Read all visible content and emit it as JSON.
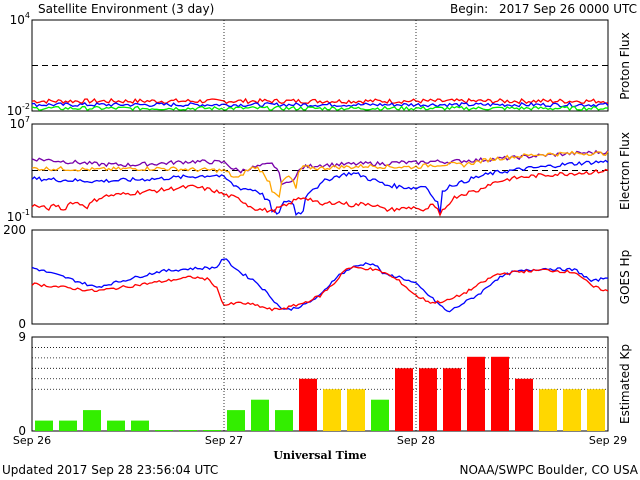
{
  "header": {
    "title": "Satellite Environment (3 day)",
    "begin_label": "Begin:",
    "begin_value": "2017 Sep 26 0000 UTC"
  },
  "footer": {
    "updated": "Updated 2017 Sep 28 23:56:04 UTC",
    "credit": "NOAA/SWPC Boulder, CO USA"
  },
  "chart_data": [
    {
      "type": "line",
      "panel": "proton",
      "ylabel": "Proton Flux",
      "yscale": "log",
      "ylim": [
        0.01,
        10000
      ],
      "ytick_labels": [
        {
          "base": "10",
          "exp": "4",
          "value": 10000
        },
        {
          "base": "10",
          "exp": "-2",
          "value": 0.01
        }
      ],
      "threshold": 10,
      "x_range_hours": [
        0,
        72
      ],
      "series": [
        {
          "color": "#ff0000",
          "level": 0.045,
          "noise": 0.3
        },
        {
          "color": "#0000ff",
          "level": 0.026,
          "noise": 0.25
        },
        {
          "color": "#00ee00",
          "level": 0.015,
          "noise": 0.25
        }
      ]
    },
    {
      "type": "line",
      "panel": "electron",
      "ylabel": "Electron Flux",
      "yscale": "log",
      "ylim": [
        0.1,
        10000000
      ],
      "ytick_labels": [
        {
          "base": "10",
          "exp": "7",
          "value": 10000000
        },
        {
          "base": "10",
          "exp": "-1",
          "value": 0.1
        }
      ],
      "threshold": 1000,
      "x_range_hours": [
        0,
        72
      ],
      "series": [
        {
          "color": "#7700aa",
          "points": [
            [
              0,
              10000
            ],
            [
              4,
              6000
            ],
            [
              8,
              3500
            ],
            [
              12,
              3000
            ],
            [
              16,
              4000
            ],
            [
              20,
              6000
            ],
            [
              24,
              5000
            ],
            [
              25,
              1500
            ],
            [
              26,
              800
            ],
            [
              28,
              2000
            ],
            [
              30,
              3500
            ],
            [
              31,
              100
            ],
            [
              32,
              60
            ],
            [
              33,
              300
            ],
            [
              34,
              2000
            ],
            [
              36,
              3000
            ],
            [
              38,
              3200
            ],
            [
              40,
              3500
            ],
            [
              42,
              4000
            ],
            [
              44,
              3800
            ],
            [
              46,
              5000
            ],
            [
              48,
              4500
            ],
            [
              50,
              6000
            ],
            [
              52,
              5500
            ],
            [
              54,
              7000
            ],
            [
              56,
              8000
            ],
            [
              60,
              12000
            ],
            [
              64,
              20000
            ],
            [
              68,
              30000
            ],
            [
              72,
              40000
            ]
          ]
        },
        {
          "color": "#ffa500",
          "points": [
            [
              0,
              1500
            ],
            [
              4,
              1400
            ],
            [
              8,
              1200
            ],
            [
              12,
              1400
            ],
            [
              16,
              1500
            ],
            [
              20,
              1200
            ],
            [
              24,
              1000
            ],
            [
              25,
              300
            ],
            [
              26,
              200
            ],
            [
              28,
              2000
            ],
            [
              29,
              300
            ],
            [
              30,
              20
            ],
            [
              31,
              5
            ],
            [
              32,
              300
            ],
            [
              33,
              20
            ],
            [
              34,
              2000
            ],
            [
              36,
              1500
            ],
            [
              38,
              2000
            ],
            [
              40,
              2000
            ],
            [
              42,
              2500
            ],
            [
              44,
              2200
            ],
            [
              46,
              2000
            ],
            [
              48,
              2000
            ],
            [
              50,
              3000
            ],
            [
              52,
              3500
            ],
            [
              54,
              3000
            ],
            [
              56,
              6000
            ],
            [
              60,
              15000
            ],
            [
              64,
              25000
            ],
            [
              68,
              30000
            ],
            [
              72,
              30000
            ]
          ]
        },
        {
          "color": "#0000ff",
          "points": [
            [
              0,
              200
            ],
            [
              4,
              150
            ],
            [
              8,
              120
            ],
            [
              12,
              150
            ],
            [
              16,
              200
            ],
            [
              20,
              300
            ],
            [
              23,
              400
            ],
            [
              25,
              60
            ],
            [
              26,
              30
            ],
            [
              28,
              20
            ],
            [
              29,
              5
            ],
            [
              30,
              0.3
            ],
            [
              31,
              0.2
            ],
            [
              32,
              3
            ],
            [
              33,
              0.2
            ],
            [
              34,
              0.3
            ],
            [
              36,
              50
            ],
            [
              38,
              300
            ],
            [
              40,
              600
            ],
            [
              42,
              200
            ],
            [
              44,
              60
            ],
            [
              46,
              40
            ],
            [
              48,
              30
            ],
            [
              49,
              50
            ],
            [
              50,
              5
            ],
            [
              51,
              0.2
            ],
            [
              52,
              40
            ],
            [
              54,
              100
            ],
            [
              56,
              300
            ],
            [
              60,
              1000
            ],
            [
              64,
              2000
            ],
            [
              68,
              4000
            ],
            [
              72,
              6000
            ]
          ]
        },
        {
          "color": "#ff0000",
          "points": [
            [
              0,
              1
            ],
            [
              2,
              0.5
            ],
            [
              3,
              1
            ],
            [
              4,
              0.3
            ],
            [
              5,
              2
            ],
            [
              7,
              0.7
            ],
            [
              8,
              3
            ],
            [
              9,
              6
            ],
            [
              12,
              10
            ],
            [
              16,
              20
            ],
            [
              20,
              40
            ],
            [
              24,
              8
            ],
            [
              26,
              3
            ],
            [
              27,
              1
            ],
            [
              28,
              0.5
            ],
            [
              30,
              0.3
            ],
            [
              32,
              1
            ],
            [
              34,
              5
            ],
            [
              36,
              1
            ],
            [
              38,
              2
            ],
            [
              40,
              1
            ],
            [
              42,
              1.5
            ],
            [
              44,
              0.4
            ],
            [
              46,
              0.5
            ],
            [
              48,
              0.7
            ],
            [
              49,
              0.2
            ],
            [
              50,
              1
            ],
            [
              51,
              0.1
            ],
            [
              52,
              1
            ],
            [
              54,
              10
            ],
            [
              56,
              20
            ],
            [
              58,
              100
            ],
            [
              60,
              200
            ],
            [
              62,
              300
            ],
            [
              64,
              400
            ],
            [
              66,
              500
            ],
            [
              68,
              600
            ],
            [
              70,
              700
            ],
            [
              72,
              1000
            ]
          ]
        }
      ]
    },
    {
      "type": "line",
      "panel": "hp",
      "ylabel": "GOES Hp",
      "yscale": "linear",
      "ylim": [
        0,
        200
      ],
      "ytick_labels": [
        {
          "label": "200",
          "value": 200
        },
        {
          "label": "0",
          "value": 0
        }
      ],
      "x_range_hours": [
        0,
        72
      ],
      "series": [
        {
          "color": "#0000ff",
          "noise": 3,
          "points": [
            [
              0,
              120
            ],
            [
              4,
              100
            ],
            [
              8,
              78
            ],
            [
              12,
              95
            ],
            [
              16,
              112
            ],
            [
              20,
              118
            ],
            [
              23,
              120
            ],
            [
              24,
              140
            ],
            [
              26,
              110
            ],
            [
              28,
              90
            ],
            [
              30,
              55
            ],
            [
              31,
              35
            ],
            [
              32,
              30
            ],
            [
              34,
              40
            ],
            [
              36,
              60
            ],
            [
              38,
              100
            ],
            [
              40,
              120
            ],
            [
              42,
              130
            ],
            [
              43,
              125
            ],
            [
              44,
              105
            ],
            [
              46,
              100
            ],
            [
              48,
              85
            ],
            [
              50,
              55
            ],
            [
              52,
              25
            ],
            [
              54,
              45
            ],
            [
              56,
              65
            ],
            [
              58,
              95
            ],
            [
              60,
              110
            ],
            [
              64,
              118
            ],
            [
              68,
              115
            ],
            [
              70,
              90
            ],
            [
              72,
              100
            ]
          ]
        },
        {
          "color": "#ff0000",
          "noise": 3,
          "points": [
            [
              0,
              85
            ],
            [
              4,
              78
            ],
            [
              8,
              70
            ],
            [
              12,
              80
            ],
            [
              16,
              90
            ],
            [
              20,
              100
            ],
            [
              22,
              95
            ],
            [
              23,
              80
            ],
            [
              24,
              40
            ],
            [
              26,
              45
            ],
            [
              28,
              40
            ],
            [
              30,
              30
            ],
            [
              32,
              35
            ],
            [
              34,
              45
            ],
            [
              36,
              60
            ],
            [
              38,
              90
            ],
            [
              39,
              115
            ],
            [
              40,
              120
            ],
            [
              42,
              118
            ],
            [
              44,
              110
            ],
            [
              46,
              90
            ],
            [
              48,
              60
            ],
            [
              50,
              45
            ],
            [
              52,
              50
            ],
            [
              54,
              65
            ],
            [
              56,
              85
            ],
            [
              58,
              105
            ],
            [
              60,
              110
            ],
            [
              64,
              115
            ],
            [
              68,
              110
            ],
            [
              70,
              80
            ],
            [
              72,
              70
            ]
          ]
        }
      ]
    },
    {
      "type": "bar",
      "panel": "kp",
      "ylabel": "Estimated Kp",
      "ylim": [
        0,
        9
      ],
      "ytick_labels": [
        {
          "label": "9",
          "value": 9
        },
        {
          "label": "0",
          "value": 0
        }
      ],
      "gridlines": [
        4,
        5,
        6,
        7,
        8,
        9
      ],
      "interval_hours": 3,
      "values": [
        1,
        1,
        2,
        1,
        1,
        0.1,
        0.1,
        0.1,
        2,
        3,
        2,
        5,
        4,
        4,
        3,
        6,
        6,
        6,
        7.1,
        7.1,
        5,
        4,
        4,
        4
      ],
      "colors": [
        "#33ee00",
        "#33ee00",
        "#33ee00",
        "#33ee00",
        "#33ee00",
        "#33ee00",
        "#33ee00",
        "#33ee00",
        "#33ee00",
        "#33ee00",
        "#33ee00",
        "#ff0000",
        "#ffd700",
        "#ffd700",
        "#33ee00",
        "#ff0000",
        "#ff0000",
        "#ff0000",
        "#ff0000",
        "#ff0000",
        "#ff0000",
        "#ffd700",
        "#ffd700",
        "#ffd700"
      ]
    }
  ],
  "x_axis": {
    "tick_labels": [
      "Sep 26",
      "Sep 27",
      "Sep 28",
      "Sep 29"
    ],
    "label": "Universal Time"
  }
}
